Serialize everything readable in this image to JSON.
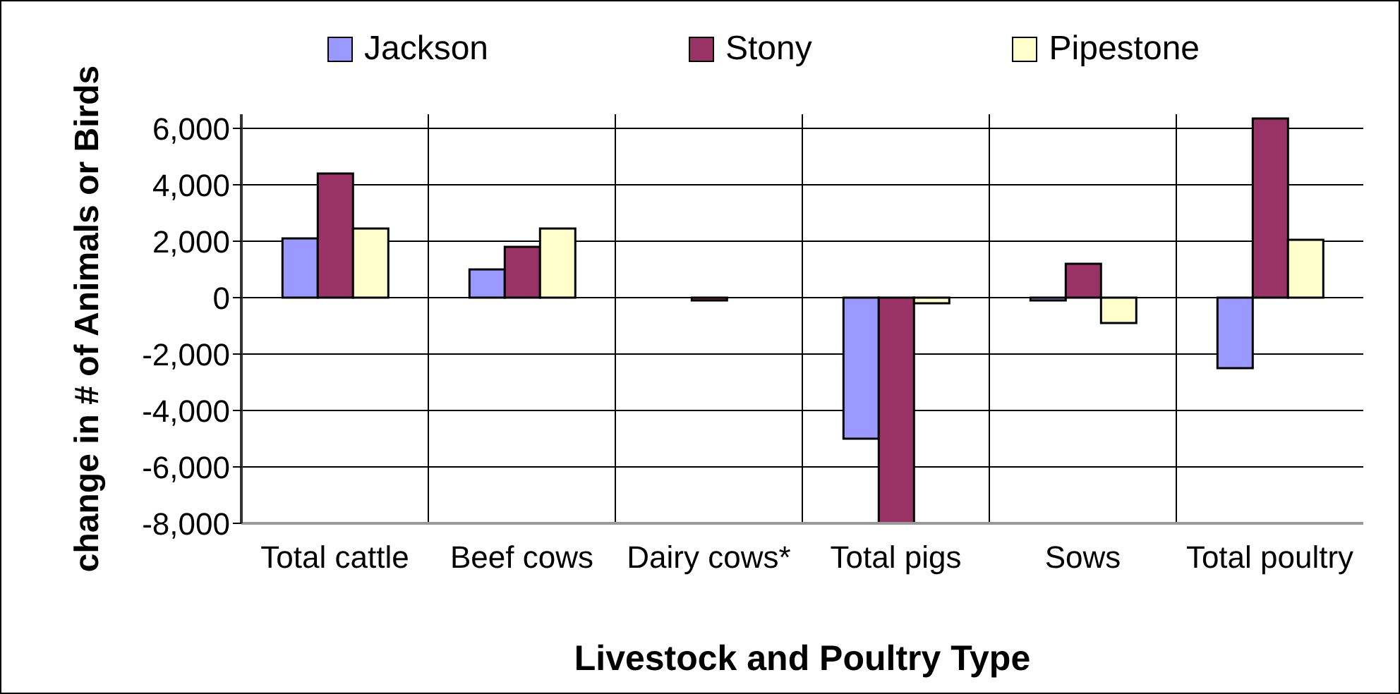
{
  "chart_data": {
    "type": "bar",
    "xlabel": "Livestock and Poultry Type",
    "ylabel": "change in # of Animals or Birds",
    "categories": [
      "Total cattle",
      "Beef cows",
      "Dairy cows*",
      "Total pigs",
      "Sows",
      "Total poultry"
    ],
    "series": [
      {
        "name": "Jackson",
        "color": "#9999ff",
        "values": [
          2100,
          1000,
          0,
          -5000,
          -100,
          -2500
        ]
      },
      {
        "name": "Stony",
        "color": "#993366",
        "values": [
          4400,
          1800,
          -100,
          -8000,
          1200,
          6350
        ]
      },
      {
        "name": "Pipestone",
        "color": "#ffffcc",
        "values": [
          2450,
          2450,
          0,
          -200,
          -900,
          2050
        ]
      }
    ],
    "ylim": [
      -8000,
      6500
    ],
    "yticks": [
      {
        "value": -8000,
        "label": "-8,000"
      },
      {
        "value": -6000,
        "label": "-6,000"
      },
      {
        "value": -4000,
        "label": "-4,000"
      },
      {
        "value": -2000,
        "label": "-2,000"
      },
      {
        "value": 0,
        "label": "0"
      },
      {
        "value": 2000,
        "label": "2,000"
      },
      {
        "value": 4000,
        "label": "4,000"
      },
      {
        "value": 6000,
        "label": "6,000"
      }
    ],
    "grid": true,
    "legend": "top"
  }
}
